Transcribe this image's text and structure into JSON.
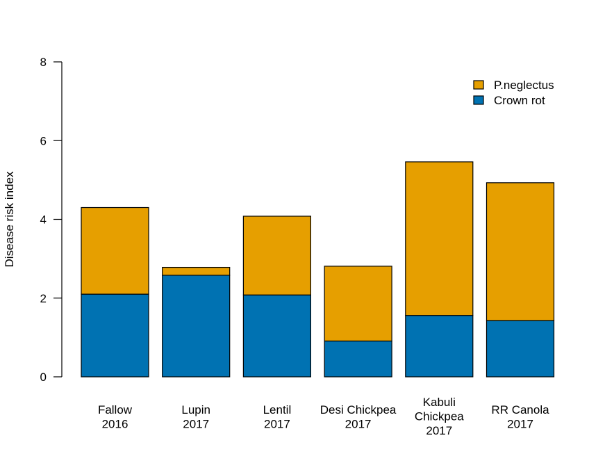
{
  "chart_data": {
    "type": "bar",
    "stacked": true,
    "categories": [
      [
        "Fallow",
        "2016"
      ],
      [
        "Lupin",
        "2017"
      ],
      [
        "Lentil",
        "2017"
      ],
      [
        "Desi Chickpea",
        "2017"
      ],
      [
        "Kabuli",
        "Chickpea",
        "2017"
      ],
      [
        "RR Canola",
        "2017"
      ]
    ],
    "series": [
      {
        "name": "Crown rot",
        "color": "#0072B2",
        "values": [
          2.1,
          2.58,
          2.08,
          0.91,
          1.56,
          1.43
        ]
      },
      {
        "name": "P.neglectus",
        "color": "#E69F00",
        "values": [
          2.2,
          0.2,
          2.0,
          1.9,
          3.9,
          3.5
        ]
      }
    ],
    "legend_order": [
      "P.neglectus",
      "Crown rot"
    ],
    "legend_position": "top-right",
    "ylabel": "Disease risk index",
    "xlabel": "",
    "ylim": [
      0,
      8
    ],
    "yticks": [
      0,
      2,
      4,
      6,
      8
    ],
    "grid": false
  }
}
